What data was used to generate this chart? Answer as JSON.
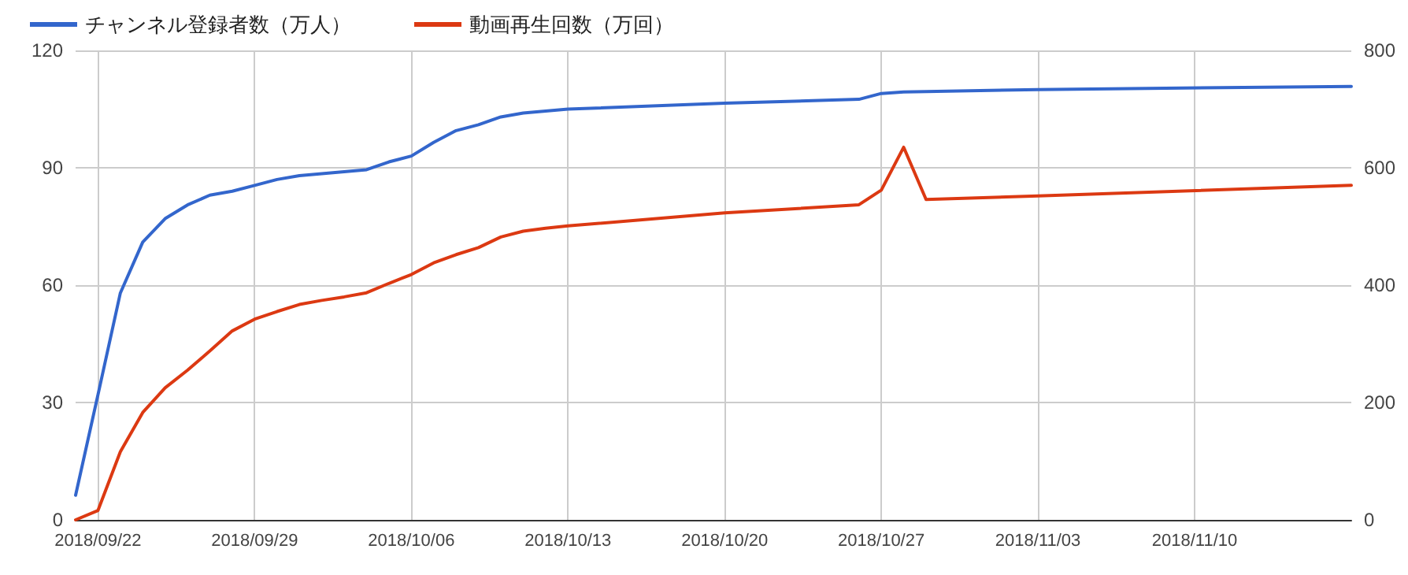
{
  "chart_data": {
    "type": "line",
    "xlim": [
      "2018-09-21",
      "2018-11-17"
    ],
    "xticks": [
      {
        "value": "2018-09-22",
        "label": "2018/09/22"
      },
      {
        "value": "2018-09-29",
        "label": "2018/09/29"
      },
      {
        "value": "2018-10-06",
        "label": "2018/10/06"
      },
      {
        "value": "2018-10-13",
        "label": "2018/10/13"
      },
      {
        "value": "2018-10-20",
        "label": "2018/10/20"
      },
      {
        "value": "2018-10-27",
        "label": "2018/10/27"
      },
      {
        "value": "2018-11-03",
        "label": "2018/11/03"
      },
      {
        "value": "2018-11-10",
        "label": "2018/11/10"
      }
    ],
    "x": [
      "2018-09-21",
      "2018-09-22",
      "2018-09-23",
      "2018-09-24",
      "2018-09-25",
      "2018-09-26",
      "2018-09-27",
      "2018-09-28",
      "2018-09-29",
      "2018-09-30",
      "2018-10-01",
      "2018-10-02",
      "2018-10-03",
      "2018-10-04",
      "2018-10-05",
      "2018-10-06",
      "2018-10-07",
      "2018-10-08",
      "2018-10-09",
      "2018-10-10",
      "2018-10-11",
      "2018-10-12",
      "2018-10-13",
      "2018-10-20",
      "2018-10-26",
      "2018-10-27",
      "2018-10-28",
      "2018-10-29",
      "2018-11-03",
      "2018-11-17"
    ],
    "ylim": [
      0,
      120
    ],
    "yticks": [
      0,
      30,
      60,
      90,
      120
    ],
    "y2lim": [
      0,
      800
    ],
    "y2ticks": [
      0,
      200,
      400,
      600,
      800
    ],
    "grid": true,
    "legend": "top left",
    "marker": "none",
    "line_style": "solid",
    "series": [
      {
        "name": "チャンネル登録者数（万人）",
        "color": "#3366cc",
        "values": [
          6.3,
          32,
          58,
          71,
          77,
          80.5,
          83,
          84,
          85.5,
          87,
          88,
          88.5,
          89,
          89.5,
          91.5,
          93,
          96.5,
          99.5,
          101,
          103,
          104,
          104.5,
          105,
          106.5,
          107.5,
          109,
          109.4,
          109.5,
          110,
          110.8
        ]
      },
      {
        "name": "動画再生回数（万回）",
        "color": "#dc3912",
        "axis": "y2",
        "values": [
          0,
          16,
          116,
          183,
          225,
          255,
          288,
          322,
          342,
          355,
          367,
          374,
          380,
          387,
          403,
          418,
          438,
          452,
          464,
          482,
          492,
          497,
          501,
          523,
          537,
          562,
          635,
          546,
          552,
          570
        ]
      }
    ]
  }
}
